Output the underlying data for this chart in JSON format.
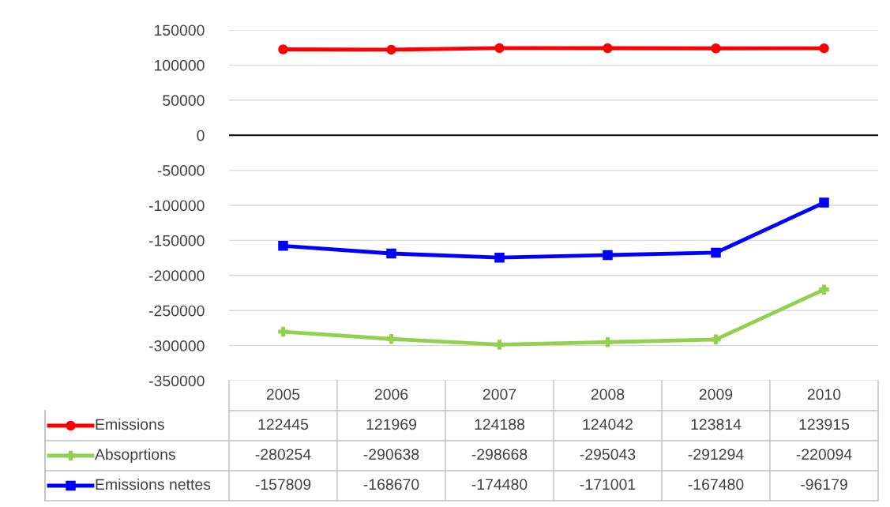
{
  "chart_data": {
    "type": "line",
    "categories": [
      "2005",
      "2006",
      "2007",
      "2008",
      "2009",
      "2010"
    ],
    "series": [
      {
        "name": "Emissions",
        "color": "#ff0000",
        "marker": "circle",
        "values": [
          122445,
          121969,
          124188,
          124042,
          123814,
          123915
        ]
      },
      {
        "name": "Absoprtions",
        "color": "#92d050",
        "marker": "cross",
        "values": [
          -280254,
          -290638,
          -298668,
          -295043,
          -291294,
          -220094
        ]
      },
      {
        "name": "Emissions nettes",
        "color": "#0000ff",
        "marker": "square",
        "values": [
          -157809,
          -168670,
          -174480,
          -171001,
          -167480,
          -96179
        ]
      }
    ],
    "ylim": [
      -350000,
      150000
    ],
    "yticks": [
      -350000,
      -300000,
      -250000,
      -200000,
      -150000,
      -100000,
      -50000,
      0,
      50000,
      100000,
      150000
    ],
    "grid": "y",
    "legend": "bottom",
    "data_labels": true,
    "line_style": "solid",
    "ref_lines": [
      {
        "axis": "y",
        "value": 0,
        "color": "#000000"
      }
    ]
  }
}
